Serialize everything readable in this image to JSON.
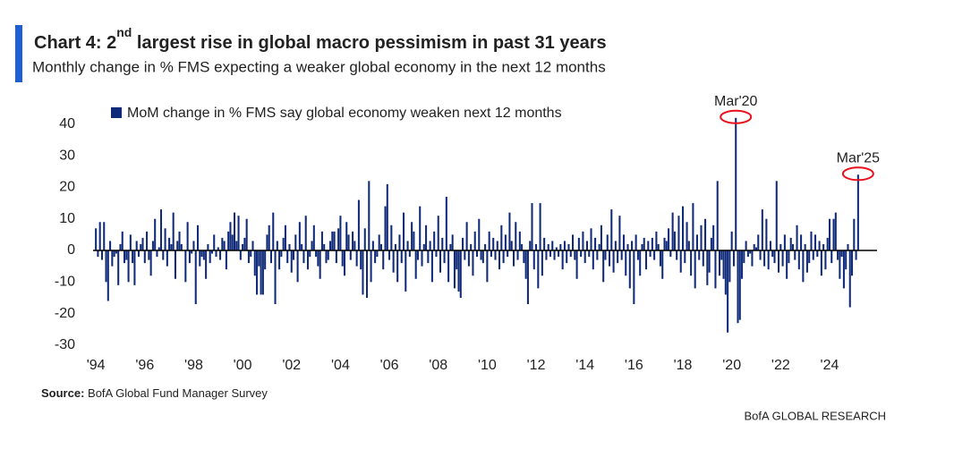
{
  "chart_data": {
    "type": "bar",
    "title": [
      "Chart 4: 2",
      "nd",
      " largest rise in global macro pessimism in past 31 years"
    ],
    "subtitle": "Monthly change in % FMS expecting a weaker global economy in the next 12 months",
    "source_label": "Source:",
    "source_text": " BofA Global Fund Manager Survey",
    "footer": "BofA GLOBAL RESEARCH",
    "ylim": [
      -33,
      44
    ],
    "yticks": [
      -30,
      -20,
      -10,
      0,
      10,
      20,
      30,
      40
    ],
    "grid": false,
    "legend": "top-left",
    "annotations": [
      {
        "text": "Mar'20",
        "index": 314
      },
      {
        "text": "Mar'25",
        "index": 374
      }
    ],
    "annotation_color": "#e8101a",
    "categories": [
      "'94",
      null,
      null,
      null,
      null,
      null,
      null,
      null,
      null,
      null,
      null,
      null,
      null,
      null,
      null,
      null,
      null,
      null,
      null,
      null,
      null,
      null,
      null,
      null,
      "'96",
      null,
      null,
      null,
      null,
      null,
      null,
      null,
      null,
      null,
      null,
      null,
      null,
      null,
      null,
      null,
      null,
      null,
      null,
      null,
      null,
      null,
      null,
      null,
      "'98",
      null,
      null,
      null,
      null,
      null,
      null,
      null,
      null,
      null,
      null,
      null,
      null,
      null,
      null,
      null,
      null,
      null,
      null,
      null,
      null,
      null,
      null,
      null,
      "'00",
      null,
      null,
      null,
      null,
      null,
      null,
      null,
      null,
      null,
      null,
      null,
      null,
      null,
      null,
      null,
      null,
      null,
      null,
      null,
      null,
      null,
      null,
      null,
      "'02",
      null,
      null,
      null,
      null,
      null,
      null,
      null,
      null,
      null,
      null,
      null,
      null,
      null,
      null,
      null,
      null,
      null,
      null,
      null,
      null,
      null,
      null,
      null,
      "'04",
      null,
      null,
      null,
      null,
      null,
      null,
      null,
      null,
      null,
      null,
      null,
      null,
      null,
      null,
      null,
      null,
      null,
      null,
      null,
      null,
      null,
      null,
      null,
      "'06",
      null,
      null,
      null,
      null,
      null,
      null,
      null,
      null,
      null,
      null,
      null,
      null,
      null,
      null,
      null,
      null,
      null,
      null,
      null,
      null,
      null,
      null,
      null,
      "'08",
      null,
      null,
      null,
      null,
      null,
      null,
      null,
      null,
      null,
      null,
      null,
      null,
      null,
      null,
      null,
      null,
      null,
      null,
      null,
      null,
      null,
      null,
      null,
      "'10",
      null,
      null,
      null,
      null,
      null,
      null,
      null,
      null,
      null,
      null,
      null,
      null,
      null,
      null,
      null,
      null,
      null,
      null,
      null,
      null,
      null,
      null,
      null,
      "'12",
      null,
      null,
      null,
      null,
      null,
      null,
      null,
      null,
      null,
      null,
      null,
      null,
      null,
      null,
      null,
      null,
      null,
      null,
      null,
      null,
      null,
      null,
      null,
      "'14",
      null,
      null,
      null,
      null,
      null,
      null,
      null,
      null,
      null,
      null,
      null,
      null,
      null,
      null,
      null,
      null,
      null,
      null,
      null,
      null,
      null,
      null,
      null,
      "'16",
      null,
      null,
      null,
      null,
      null,
      null,
      null,
      null,
      null,
      null,
      null,
      null,
      null,
      null,
      null,
      null,
      null,
      null,
      null,
      null,
      null,
      null,
      null,
      "'18",
      null,
      null,
      null,
      null,
      null,
      null,
      null,
      null,
      null,
      null,
      null,
      null,
      null,
      null,
      null,
      null,
      null,
      null,
      null,
      null,
      null,
      null,
      null,
      "'20",
      null,
      null,
      null,
      null,
      null,
      null,
      null,
      null,
      null,
      null,
      null,
      null,
      null,
      null,
      null,
      null,
      null,
      null,
      null,
      null,
      null,
      null,
      null,
      "'22",
      null,
      null,
      null,
      null,
      null,
      null,
      null,
      null,
      null,
      null,
      null,
      null,
      null,
      null,
      null,
      null,
      null,
      null,
      null,
      null,
      null,
      null,
      null,
      "'24",
      null,
      null,
      null,
      null,
      null,
      null,
      null,
      null,
      null,
      null,
      null,
      null,
      null,
      null
    ],
    "series": [
      {
        "name": "MoM change in % FMS say global economy weaken next 12 months",
        "color": "#102a7a",
        "values": [
          7,
          -2,
          9,
          -3,
          9,
          -10,
          -16,
          3,
          -5,
          -2,
          -1,
          -11,
          2,
          6,
          -4,
          -3,
          -10,
          5,
          -4,
          -11,
          3,
          -2,
          2,
          4,
          -4,
          6,
          -3,
          -8,
          3,
          10,
          -2,
          1,
          13,
          -3,
          7,
          -5,
          4,
          2,
          12,
          -9,
          3,
          6,
          2,
          0,
          -10,
          9,
          -4,
          -1,
          3,
          -17,
          8,
          -5,
          -2,
          -3,
          -9,
          2,
          -4,
          -1,
          5,
          -2,
          1,
          -3,
          4,
          3,
          -6,
          6,
          9,
          5,
          12,
          3,
          11,
          -3,
          2,
          4,
          10,
          -4,
          -2,
          3,
          -8,
          -14,
          -5,
          -14,
          -14,
          -6,
          5,
          8,
          -4,
          12,
          -17,
          3,
          -6,
          -2,
          4,
          8,
          -4,
          2,
          -7,
          -3,
          5,
          -10,
          9,
          2,
          -4,
          11,
          -6,
          -2,
          3,
          8,
          -2,
          -5,
          -9,
          6,
          2,
          -4,
          -3,
          3,
          6,
          6,
          -4,
          7,
          11,
          -5,
          -8,
          9,
          5,
          -3,
          6,
          3,
          -5,
          16,
          -6,
          -14,
          7,
          -15,
          22,
          -10,
          3,
          -4,
          -2,
          5,
          2,
          -6,
          14,
          21,
          -3,
          8,
          -7,
          2,
          -10,
          5,
          -4,
          12,
          -13,
          3,
          -2,
          9,
          6,
          -9,
          -3,
          14,
          -5,
          2,
          8,
          -4,
          3,
          -10,
          6,
          -2,
          11,
          -7,
          4,
          -4,
          17,
          -10,
          2,
          5,
          -12,
          -6,
          -13,
          -15,
          4,
          -3,
          9,
          -5,
          2,
          -8,
          6,
          -2,
          10,
          -3,
          -4,
          2,
          -10,
          6,
          -2,
          4,
          -3,
          3,
          -6,
          8,
          -4,
          5,
          -2,
          12,
          3,
          -5,
          9,
          -3,
          6,
          2,
          -4,
          -9,
          -17,
          3,
          15,
          -6,
          2,
          -12,
          15,
          -8,
          4,
          -3,
          2,
          -2,
          3,
          -3,
          1,
          -2,
          2,
          -6,
          3,
          -4,
          2,
          -2,
          5,
          -3,
          -9,
          4,
          -2,
          6,
          -4,
          3,
          -2,
          7,
          -6,
          4,
          -3,
          2,
          8,
          -10,
          -3,
          5,
          -5,
          13,
          -7,
          3,
          -4,
          11,
          -3,
          5,
          -8,
          2,
          -12,
          3,
          -17,
          5,
          -3,
          -8,
          2,
          4,
          -6,
          3,
          -2,
          4,
          -3,
          6,
          2,
          -5,
          -9,
          4,
          3,
          7,
          -2,
          12,
          6,
          -3,
          11,
          -7,
          14,
          -4,
          9,
          3,
          -8,
          15,
          -12,
          5,
          -3,
          8,
          -5,
          10,
          -11,
          -7,
          4,
          8,
          -12,
          22,
          -8,
          -3,
          -9,
          -14,
          -26,
          -10,
          6,
          -5,
          42,
          -23,
          -22,
          -9,
          -4,
          3,
          -2,
          -1,
          -5,
          2,
          1,
          5,
          -3,
          13,
          -5,
          10,
          -6,
          3,
          -2,
          -4,
          22,
          -7,
          2,
          -5,
          5,
          -9,
          -4,
          4,
          2,
          -3,
          8,
          -6,
          5,
          -10,
          2,
          -7,
          -4,
          6,
          -3,
          5,
          -2,
          3,
          -8,
          2,
          -6,
          4,
          10,
          -4,
          10,
          12,
          -3,
          -9,
          -2,
          -12,
          -6,
          2,
          -18,
          -8,
          10,
          -3,
          24
        ]
      }
    ]
  }
}
